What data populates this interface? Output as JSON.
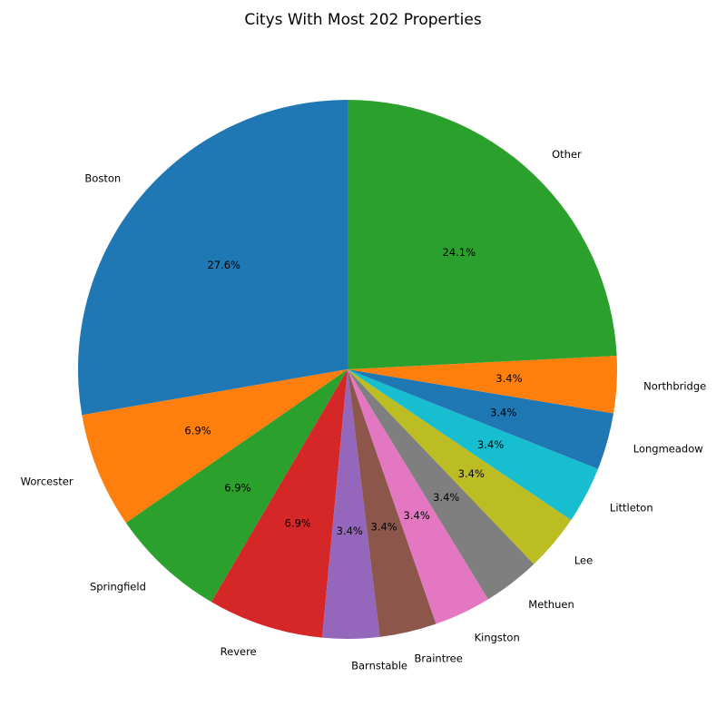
{
  "chart_data": {
    "type": "pie",
    "title": "Citys With Most 202 Properties",
    "start_angle_deg": 90,
    "direction": "counterclockwise",
    "slices": [
      {
        "label": "Boston",
        "value": 27.6,
        "pct_label": "27.6%",
        "color": "#1f77b4"
      },
      {
        "label": "Worcester",
        "value": 6.9,
        "pct_label": "6.9%",
        "color": "#ff7f0e"
      },
      {
        "label": "Springfield",
        "value": 6.9,
        "pct_label": "6.9%",
        "color": "#2ca02c"
      },
      {
        "label": "Revere",
        "value": 6.9,
        "pct_label": "6.9%",
        "color": "#d62728"
      },
      {
        "label": "Barnstable",
        "value": 3.4,
        "pct_label": "3.4%",
        "color": "#9467bd"
      },
      {
        "label": "Braintree",
        "value": 3.4,
        "pct_label": "3.4%",
        "color": "#8c564b"
      },
      {
        "label": "Kingston",
        "value": 3.4,
        "pct_label": "3.4%",
        "color": "#e377c2"
      },
      {
        "label": "Methuen",
        "value": 3.4,
        "pct_label": "3.4%",
        "color": "#7f7f7f"
      },
      {
        "label": "Lee",
        "value": 3.4,
        "pct_label": "3.4%",
        "color": "#bcbd22"
      },
      {
        "label": "Littleton",
        "value": 3.4,
        "pct_label": "3.4%",
        "color": "#17becf"
      },
      {
        "label": "Longmeadow",
        "value": 3.4,
        "pct_label": "3.4%",
        "color": "#1f77b4"
      },
      {
        "label": "Northbridge",
        "value": 3.4,
        "pct_label": "3.4%",
        "color": "#ff7f0e"
      },
      {
        "label": "Other",
        "value": 24.1,
        "pct_label": "24.1%",
        "color": "#2ca02c"
      }
    ]
  }
}
